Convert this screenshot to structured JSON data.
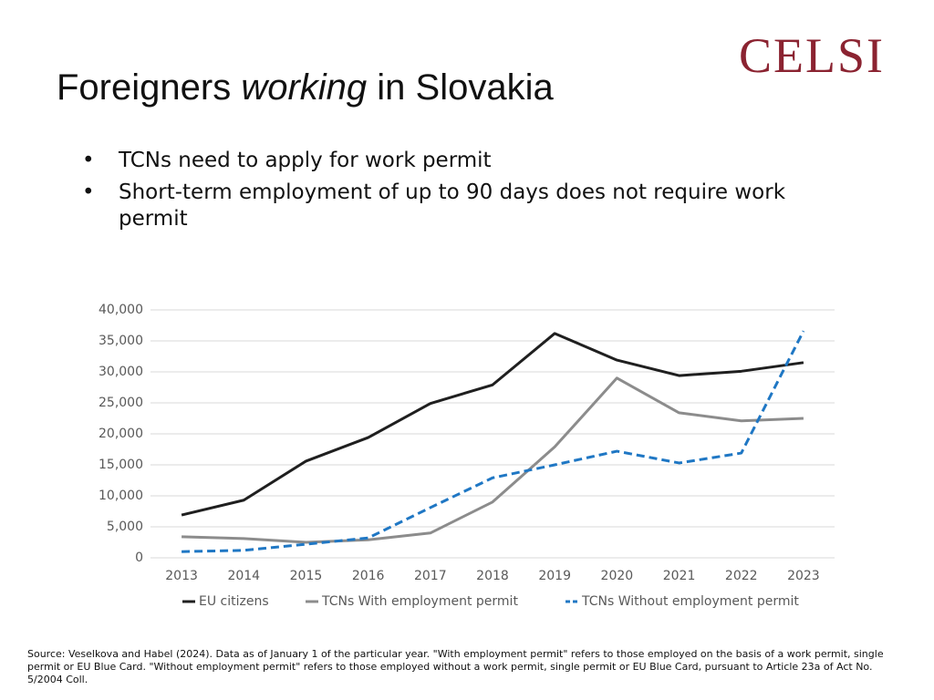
{
  "logo": "CELSI",
  "title_parts": [
    "Foreigners ",
    "working",
    " in Slovakia"
  ],
  "bullets": [
    "TCNs need to apply for work permit",
    "Short-term employment of up to 90 days does not require work permit"
  ],
  "source": "Source: Veselkova and Habel (2024). Data as of January 1 of the particular year. \"With employment permit\" refers to those employed on the basis of a work permit, single permit or EU Blue Card. \"Without employment permit\" refers to those employed without a work permit, single permit or EU Blue Card, pursuant to Article 23a of Act No. 5/2004 Coll.",
  "chart_data": {
    "type": "line",
    "categories": [
      "2013",
      "2014",
      "2015",
      "2016",
      "2017",
      "2018",
      "2019",
      "2020",
      "2021",
      "2022",
      "2023"
    ],
    "series": [
      {
        "name": "EU citizens",
        "color": "#1f1f1f",
        "dashed": false,
        "values": [
          6900,
          9300,
          15600,
          19400,
          24900,
          27900,
          36200,
          31900,
          29400,
          30100,
          31500
        ]
      },
      {
        "name": "TCNs With employment permit",
        "color": "#8c8c8c",
        "dashed": false,
        "values": [
          3400,
          3100,
          2500,
          2900,
          4000,
          9000,
          17900,
          29000,
          23400,
          22100,
          22500
        ]
      },
      {
        "name": "TCNs Without employment permit",
        "color": "#1f77c4",
        "dashed": true,
        "values": [
          1000,
          1200,
          2200,
          3200,
          8100,
          12900,
          15000,
          17200,
          15300,
          16900,
          36600
        ]
      }
    ],
    "ylim": [
      0,
      40000
    ],
    "yticks": [
      0,
      {
        "value": 5000,
        "label": "5,000"
      },
      {
        "value": 10000,
        "label": "10,000"
      },
      {
        "value": 15000,
        "label": "15,000"
      },
      {
        "value": 20000,
        "label": "20,000"
      },
      {
        "value": 25000,
        "label": "25,000"
      },
      {
        "value": 30000,
        "label": "30,000"
      },
      {
        "value": 35000,
        "label": "35,000"
      },
      {
        "value": 40000,
        "label": "40,000"
      }
    ],
    "grid": true,
    "legend": "bottom"
  }
}
